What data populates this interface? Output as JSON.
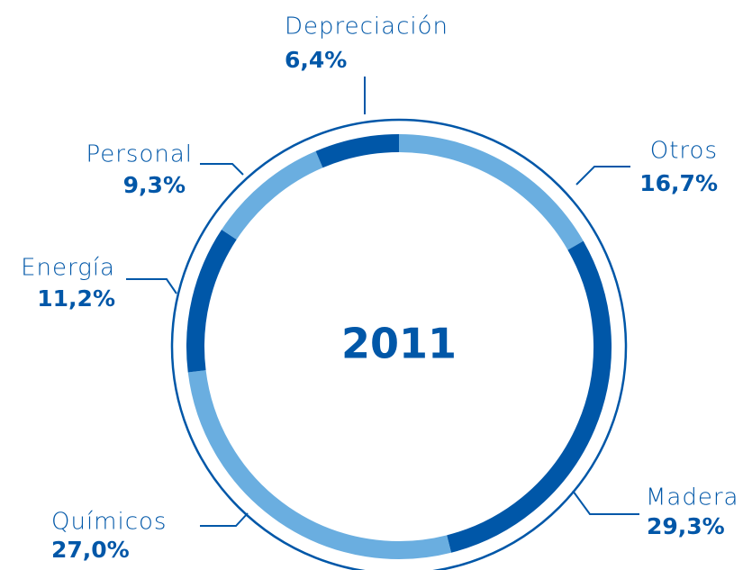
{
  "chart_data": {
    "type": "donut",
    "title": "2011",
    "categories": [
      "Otros",
      "Madera",
      "Químicos",
      "Energía",
      "Personal",
      "Depreciación"
    ],
    "values": [
      16.7,
      29.3,
      27.0,
      11.2,
      9.3,
      6.4
    ],
    "value_labels": [
      "16,7%",
      "29,3%",
      "27,0%",
      "11,2%",
      "9,3%",
      "6,4%"
    ],
    "colors": [
      "#6aaee0",
      "#0057a8",
      "#6aaee0",
      "#0057a8",
      "#6aaee0",
      "#0057a8"
    ]
  }
}
